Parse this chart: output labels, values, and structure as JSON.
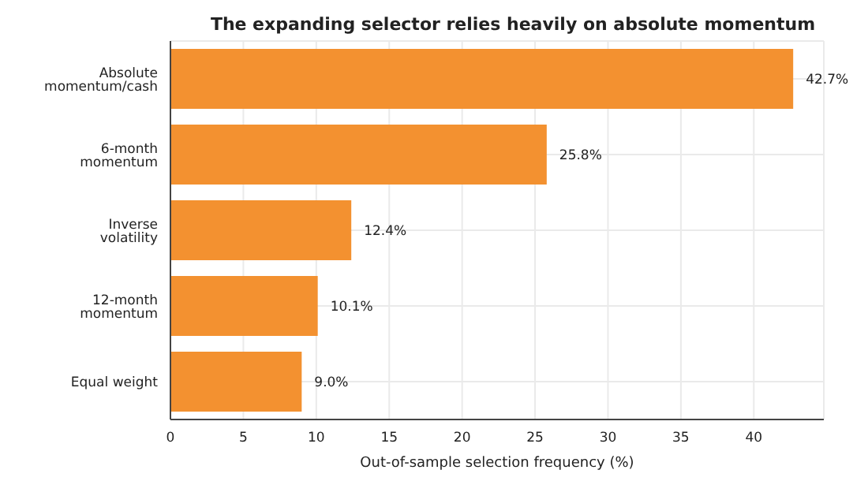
{
  "chart_data": {
    "type": "bar",
    "orientation": "horizontal",
    "title": "The expanding selector relies heavily on absolute momentum",
    "xlabel": "Out-of-sample selection frequency (%)",
    "categories": [
      "Absolute momentum/cash",
      "6-month momentum",
      "Inverse volatility",
      "12-month momentum",
      "Equal weight"
    ],
    "values": [
      42.7,
      25.8,
      12.4,
      10.1,
      9.0
    ],
    "value_labels": [
      "42.7%",
      "25.8%",
      "12.4%",
      "10.1%",
      "9.0%"
    ],
    "color": "#f39130",
    "xlim": [
      0,
      44.8
    ],
    "xticks": [
      0,
      5,
      10,
      15,
      20,
      25,
      30,
      35,
      40
    ],
    "grid": true
  }
}
